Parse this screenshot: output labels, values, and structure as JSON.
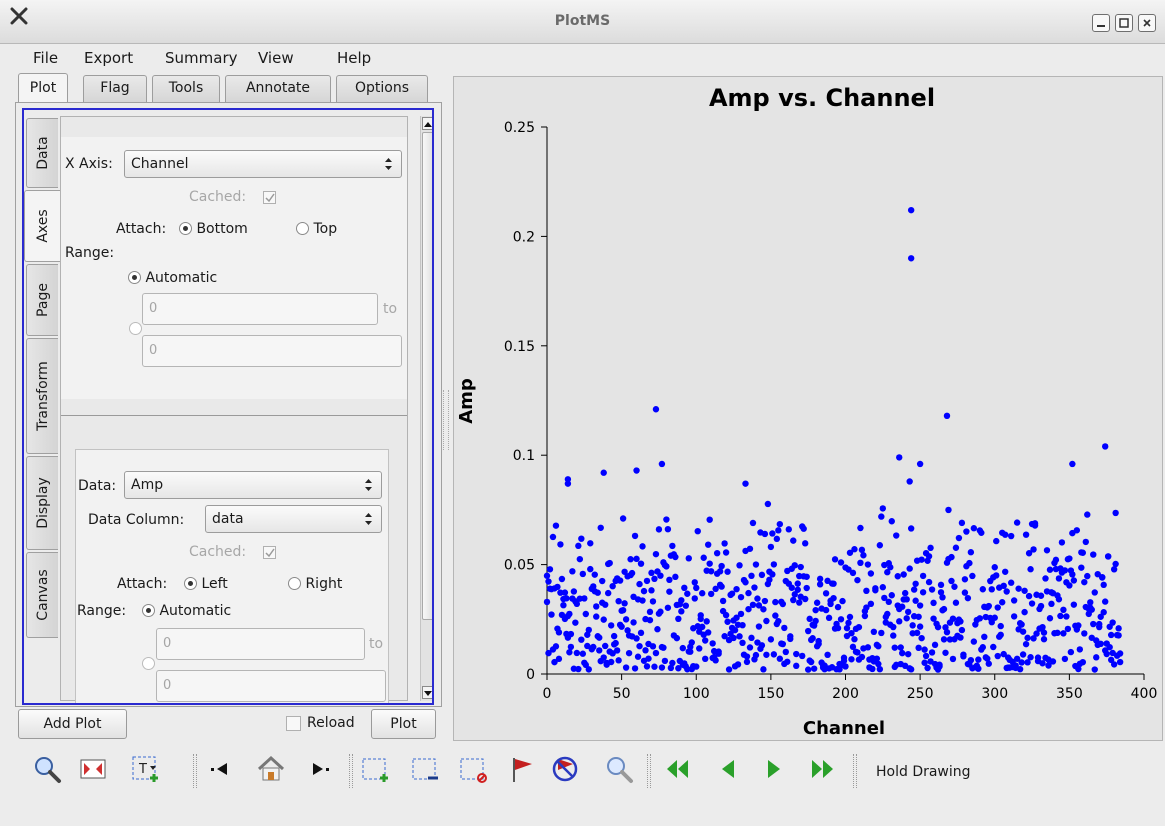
{
  "window": {
    "title": "PlotMS"
  },
  "menu": [
    "File",
    "Export",
    "Summary",
    "View",
    "Help"
  ],
  "tabs": [
    "Plot",
    "Flag",
    "Tools",
    "Annotate",
    "Options"
  ],
  "side_tabs": [
    "Data",
    "Axes",
    "Page",
    "Transform",
    "Display",
    "Canvas"
  ],
  "x_axis": {
    "label": "X Axis:",
    "value": "Channel",
    "cached_label": "Cached:",
    "attach_label": "Attach:",
    "attach_options": [
      "Bottom",
      "Top"
    ],
    "range_label": "Range:",
    "automatic_label": "Automatic",
    "min": "0",
    "to_label": "to",
    "max": "0"
  },
  "y_axis": {
    "data_label": "Data:",
    "data_value": "Amp",
    "column_label": "Data Column:",
    "column_value": "data",
    "cached_label": "Cached:",
    "attach_label": "Attach:",
    "attach_options": [
      "Left",
      "Right"
    ],
    "range_label": "Range:",
    "automatic_label": "Automatic",
    "min": "0",
    "to_label": "to",
    "max": "0"
  },
  "buttons": {
    "add_plot": "Add Plot",
    "reload": "Reload",
    "plot": "Plot"
  },
  "toolbar": {
    "hold_drawing": "Hold Drawing"
  },
  "colors": {
    "points": "#0000ff",
    "accent": "#2a2ad0"
  },
  "chart_data": {
    "type": "scatter",
    "title": "Amp vs. Channel",
    "xlabel": "Channel",
    "ylabel": "Amp",
    "xlim": [
      0,
      400
    ],
    "ylim": [
      0,
      0.25
    ],
    "xticks": [
      0,
      50,
      100,
      150,
      200,
      250,
      300,
      350,
      400
    ],
    "yticks": [
      0,
      0.05,
      0.1,
      0.15,
      0.2,
      0.25
    ],
    "grid": false,
    "outliers": [
      {
        "x": 244,
        "y": 0.212
      },
      {
        "x": 244,
        "y": 0.19
      },
      {
        "x": 73,
        "y": 0.121
      },
      {
        "x": 268,
        "y": 0.118
      },
      {
        "x": 374,
        "y": 0.104
      },
      {
        "x": 236,
        "y": 0.099
      },
      {
        "x": 250,
        "y": 0.096
      },
      {
        "x": 352,
        "y": 0.096
      },
      {
        "x": 77,
        "y": 0.096
      },
      {
        "x": 38,
        "y": 0.092
      },
      {
        "x": 60,
        "y": 0.093
      },
      {
        "x": 14,
        "y": 0.089
      },
      {
        "x": 14,
        "y": 0.087
      },
      {
        "x": 243,
        "y": 0.088
      },
      {
        "x": 133,
        "y": 0.087
      }
    ],
    "bulk": {
      "channels": [
        0,
        384
      ],
      "y_range": [
        0.002,
        0.08
      ],
      "points_per_channel": 2
    }
  }
}
